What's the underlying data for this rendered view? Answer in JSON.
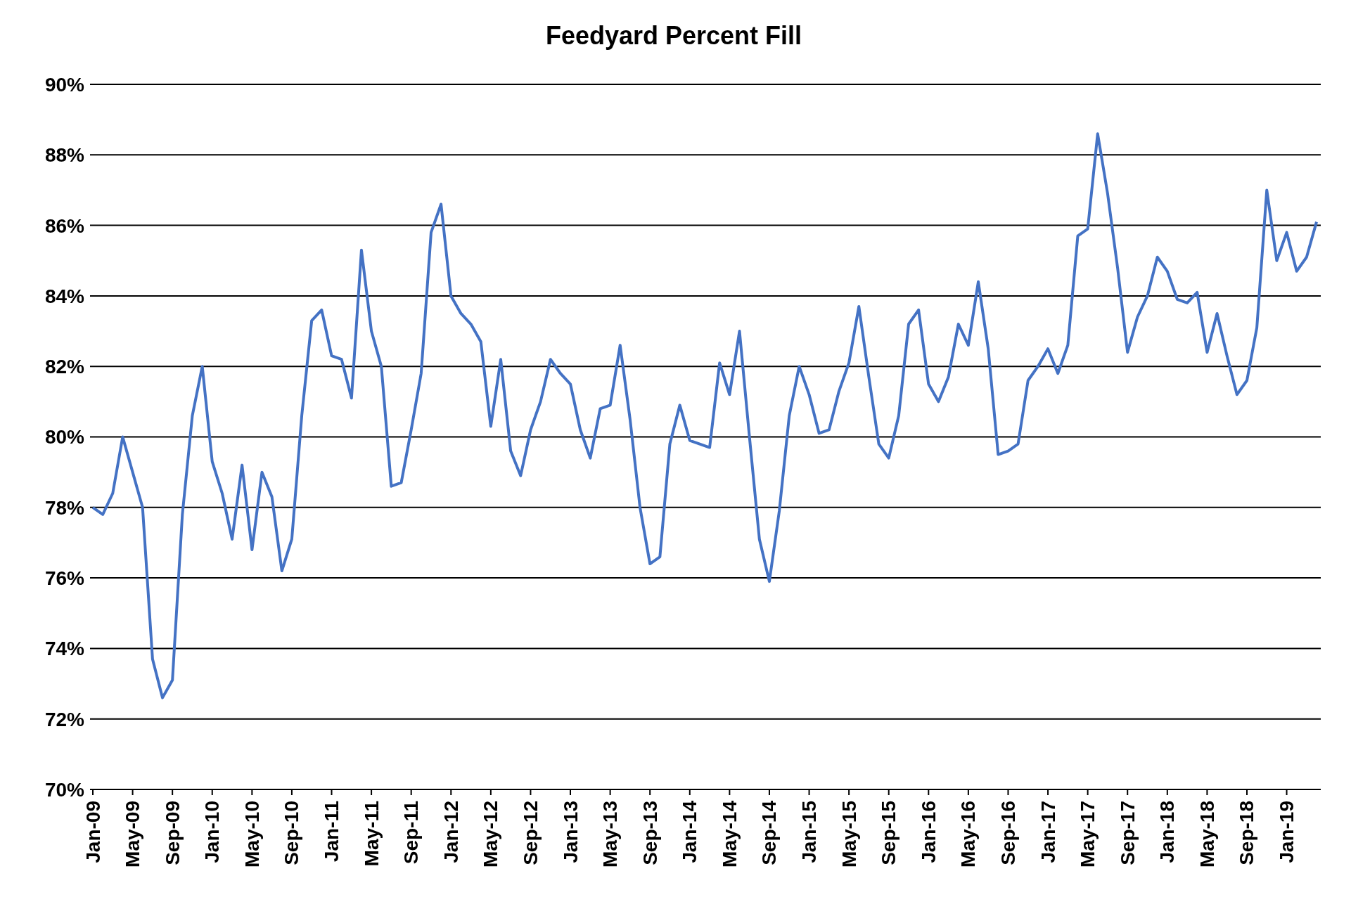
{
  "chart_data": {
    "type": "line",
    "title": "Feedyard Percent Fill",
    "categories": [
      "Jan-09",
      null,
      null,
      null,
      "May-09",
      null,
      null,
      null,
      "Sep-09",
      null,
      null,
      null,
      "Jan-10",
      null,
      null,
      null,
      "May-10",
      null,
      null,
      null,
      "Sep-10",
      null,
      null,
      null,
      "Jan-11",
      null,
      null,
      null,
      "May-11",
      null,
      null,
      null,
      "Sep-11",
      null,
      null,
      null,
      "Jan-12",
      null,
      null,
      null,
      "May-12",
      null,
      null,
      null,
      "Sep-12",
      null,
      null,
      null,
      "Jan-13",
      null,
      null,
      null,
      "May-13",
      null,
      null,
      null,
      "Sep-13",
      null,
      null,
      null,
      "Jan-14",
      null,
      null,
      null,
      "May-14",
      null,
      null,
      null,
      "Sep-14",
      null,
      null,
      null,
      "Jan-15",
      null,
      null,
      null,
      "May-15",
      null,
      null,
      null,
      "Sep-15",
      null,
      null,
      null,
      "Jan-16",
      null,
      null,
      null,
      "May-16",
      null,
      null,
      null,
      "Sep-16",
      null,
      null,
      null,
      "Jan-17",
      null,
      null,
      null,
      "May-17",
      null,
      null,
      null,
      "Sep-17",
      null,
      null,
      null,
      "Jan-18",
      null,
      null,
      null,
      "May-18",
      null,
      null,
      null,
      "Sep-18",
      null,
      null,
      null,
      "Jan-19",
      null,
      null,
      null
    ],
    "series": [
      {
        "color": "#4472c4",
        "values": [
          78.0,
          77.8,
          78.4,
          80.0,
          79.0,
          78.0,
          73.7,
          72.6,
          73.1,
          77.8,
          80.6,
          82.0,
          79.3,
          78.4,
          77.1,
          79.2,
          76.8,
          79.0,
          78.3,
          76.2,
          77.1,
          80.6,
          83.3,
          83.6,
          82.3,
          82.2,
          81.1,
          85.3,
          83.0,
          82.0,
          78.6,
          78.7,
          80.2,
          81.8,
          85.8,
          86.6,
          84.0,
          83.5,
          83.2,
          82.7,
          80.3,
          82.2,
          79.6,
          78.9,
          80.2,
          81.0,
          82.2,
          81.8,
          81.5,
          80.2,
          79.4,
          80.8,
          80.9,
          82.6,
          80.5,
          78.0,
          76.4,
          76.6,
          79.8,
          80.9,
          79.9,
          79.8,
          79.7,
          82.1,
          81.2,
          83.0,
          80.0,
          77.1,
          75.9,
          77.9,
          80.6,
          82.0,
          81.2,
          80.1,
          80.2,
          81.3,
          82.1,
          83.7,
          81.7,
          79.8,
          79.4,
          80.6,
          83.2,
          83.6,
          81.5,
          81.0,
          81.7,
          83.2,
          82.6,
          84.4,
          82.5,
          79.5,
          79.6,
          79.8,
          81.6,
          82.0,
          82.5,
          81.8,
          82.6,
          85.7,
          85.9,
          88.6,
          86.9,
          84.8,
          82.4,
          83.4,
          84.0,
          85.1,
          84.7,
          83.9,
          83.8,
          84.1,
          82.4,
          83.5,
          82.3,
          81.2,
          81.6,
          83.1,
          87.0,
          85.0,
          85.8,
          84.7,
          85.1,
          86.1
        ]
      }
    ],
    "ylim": [
      70,
      90
    ],
    "yticks": [
      {
        "value": 70,
        "label": "70%"
      },
      {
        "value": 72,
        "label": "72%"
      },
      {
        "value": 74,
        "label": "74%"
      },
      {
        "value": 76,
        "label": "76%"
      },
      {
        "value": 78,
        "label": "78%"
      },
      {
        "value": 80,
        "label": "80%"
      },
      {
        "value": 82,
        "label": "82%"
      },
      {
        "value": 84,
        "label": "84%"
      },
      {
        "value": 86,
        "label": "86%"
      },
      {
        "value": 88,
        "label": "88%"
      },
      {
        "value": 90,
        "label": "90%"
      }
    ],
    "grid": "y",
    "legend": false,
    "marker": "none",
    "line_style": "solid"
  }
}
